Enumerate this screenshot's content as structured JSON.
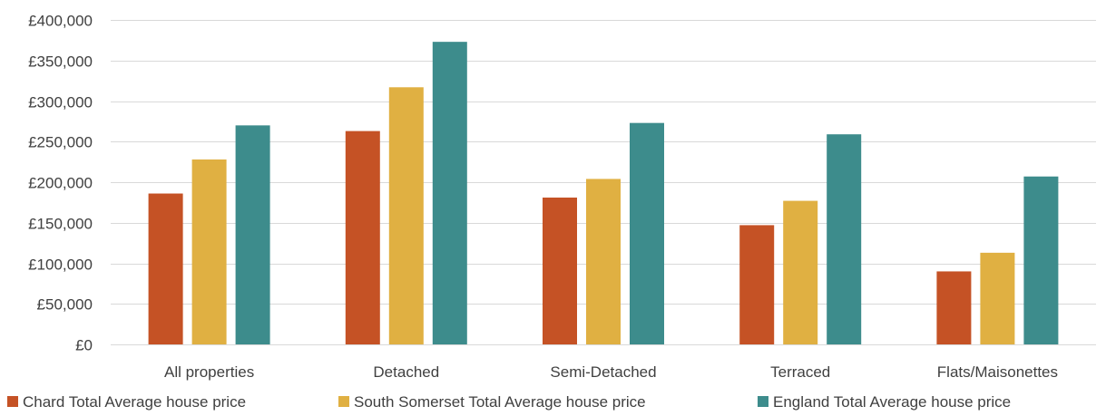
{
  "chart_data": {
    "type": "bar",
    "title": "",
    "xlabel": "",
    "ylabel": "",
    "ylim": [
      0,
      400000
    ],
    "y_ticks": [
      {
        "value": 0,
        "label": "£0"
      },
      {
        "value": 50000,
        "label": "£50,000"
      },
      {
        "value": 100000,
        "label": "£100,000"
      },
      {
        "value": 150000,
        "label": "£150,000"
      },
      {
        "value": 200000,
        "label": "£200,000"
      },
      {
        "value": 250000,
        "label": "£250,000"
      },
      {
        "value": 300000,
        "label": "£300,000"
      },
      {
        "value": 350000,
        "label": "£350,000"
      },
      {
        "value": 400000,
        "label": "£400,000"
      }
    ],
    "grid": true,
    "legend_position": "bottom",
    "categories": [
      "All properties",
      "Detached",
      "Semi-Detached",
      "Terraced",
      "Flats/Maisonettes"
    ],
    "series": [
      {
        "name": "Chard Total Average house price",
        "color": "#c55225",
        "values": [
          186000,
          263000,
          181000,
          147000,
          90000
        ]
      },
      {
        "name": "South Somerset Total Average house price",
        "color": "#e0b042",
        "values": [
          228000,
          317000,
          204000,
          177000,
          113000
        ]
      },
      {
        "name": "England Total Average house price",
        "color": "#3d8c8c",
        "values": [
          270000,
          373000,
          273000,
          259000,
          207000
        ]
      }
    ]
  }
}
